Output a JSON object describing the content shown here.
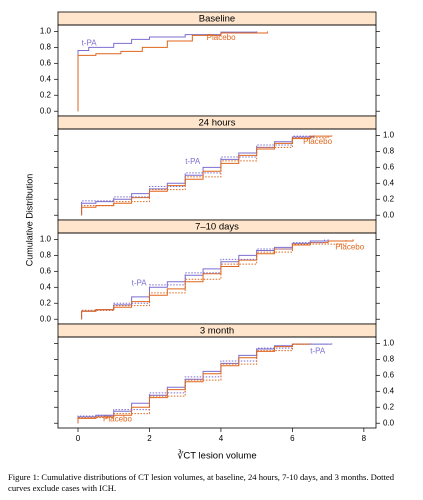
{
  "chart_data": [
    {
      "type": "line",
      "title": "Baseline",
      "xlim": [
        -0.56,
        8.34
      ],
      "ylim": [
        -0.06,
        1.08
      ],
      "yticks": [
        {
          "value": 0,
          "label": "0.0"
        },
        {
          "value": 0.2,
          "label": "0.2"
        },
        {
          "value": 0.4,
          "label": "0.4"
        },
        {
          "value": 0.6,
          "label": "0.6"
        },
        {
          "value": 0.8,
          "label": "0.8"
        },
        {
          "value": 1,
          "label": "1.0"
        }
      ],
      "series": [
        {
          "name": "t-PA",
          "color": "#7b6fd0",
          "x": [
            0,
            0,
            0.3,
            1,
            1.5,
            2,
            3,
            4,
            5
          ],
          "values": [
            0,
            0.76,
            0.8,
            0.85,
            0.9,
            0.93,
            0.96,
            0.99,
            1
          ]
        },
        {
          "name": "Placebo",
          "color": "#e0661c",
          "x": [
            0,
            0,
            0.5,
            1.2,
            1.8,
            2.5,
            3.2,
            4,
            5.3
          ],
          "values": [
            0,
            0.7,
            0.72,
            0.75,
            0.8,
            0.88,
            0.95,
            0.98,
            1
          ]
        }
      ]
    },
    {
      "type": "line",
      "title": "24 hours",
      "xlim": [
        -0.56,
        8.34
      ],
      "ylim": [
        -0.06,
        1.08
      ],
      "yticks": [
        {
          "value": 0,
          "label": "0.0"
        },
        {
          "value": 0.2,
          "label": "0.2"
        },
        {
          "value": 0.4,
          "label": "0.4"
        },
        {
          "value": 0.6,
          "label": "0.6"
        },
        {
          "value": 0.8,
          "label": "0.8"
        },
        {
          "value": 1,
          "label": "1.0"
        }
      ],
      "series": [
        {
          "name": "t-PA",
          "color": "#7b6fd0",
          "x": [
            0.1,
            0.1,
            0.5,
            1,
            1.5,
            2,
            2.5,
            3,
            3.5,
            4,
            4.5,
            5,
            5.5,
            6,
            6.6
          ],
          "values": [
            0,
            0.15,
            0.17,
            0.2,
            0.27,
            0.33,
            0.4,
            0.5,
            0.6,
            0.7,
            0.78,
            0.85,
            0.92,
            0.98,
            1
          ]
        },
        {
          "name": "Placebo",
          "color": "#e0661c",
          "x": [
            0.1,
            0.1,
            0.5,
            1,
            1.5,
            2,
            2.5,
            3,
            3.5,
            4,
            4.5,
            5,
            5.5,
            6,
            6.5,
            7.1
          ],
          "values": [
            0,
            0.1,
            0.12,
            0.15,
            0.22,
            0.3,
            0.37,
            0.45,
            0.55,
            0.65,
            0.75,
            0.83,
            0.9,
            0.96,
            0.99,
            1
          ]
        },
        {
          "color": "#7b6fd0",
          "dash": true,
          "x": [
            0.1,
            0.1,
            1,
            2,
            3,
            4,
            5,
            6,
            6.5
          ],
          "values": [
            0,
            0.18,
            0.23,
            0.36,
            0.53,
            0.73,
            0.88,
            0.99,
            1
          ]
        },
        {
          "color": "#e0661c",
          "dash": true,
          "x": [
            0.1,
            0.1,
            1,
            2,
            3,
            4,
            5,
            6,
            7
          ],
          "values": [
            0,
            0.12,
            0.17,
            0.32,
            0.48,
            0.68,
            0.85,
            0.97,
            1
          ]
        }
      ]
    },
    {
      "type": "line",
      "title": "7–10 days",
      "xlim": [
        -0.56,
        8.34
      ],
      "ylim": [
        -0.06,
        1.08
      ],
      "yticks": [
        {
          "value": 0,
          "label": "0.0"
        },
        {
          "value": 0.2,
          "label": "0.2"
        },
        {
          "value": 0.4,
          "label": "0.4"
        },
        {
          "value": 0.6,
          "label": "0.6"
        },
        {
          "value": 0.8,
          "label": "0.8"
        },
        {
          "value": 1,
          "label": "1.0"
        }
      ],
      "series": [
        {
          "name": "t-PA",
          "color": "#7b6fd0",
          "x": [
            0.1,
            0.1,
            0.5,
            1,
            1.5,
            2,
            2.5,
            3,
            3.5,
            4,
            4.5,
            5,
            5.5,
            6,
            6.5,
            7
          ],
          "values": [
            0,
            0.1,
            0.12,
            0.18,
            0.28,
            0.4,
            0.47,
            0.55,
            0.63,
            0.72,
            0.8,
            0.86,
            0.9,
            0.95,
            0.98,
            1
          ]
        },
        {
          "name": "Placebo",
          "color": "#e0661c",
          "x": [
            0.1,
            0.1,
            0.5,
            1,
            1.5,
            2,
            2.5,
            3,
            3.5,
            4,
            4.5,
            5,
            5.5,
            6,
            6.5,
            7,
            7.7
          ],
          "values": [
            0,
            0.1,
            0.12,
            0.15,
            0.22,
            0.3,
            0.38,
            0.47,
            0.57,
            0.66,
            0.74,
            0.82,
            0.88,
            0.93,
            0.96,
            0.98,
            1
          ]
        },
        {
          "color": "#7b6fd0",
          "dash": true,
          "x": [
            0.1,
            0.1,
            1,
            2,
            3,
            4,
            5,
            6,
            6.9
          ],
          "values": [
            0,
            0.11,
            0.2,
            0.43,
            0.58,
            0.75,
            0.88,
            0.96,
            1
          ]
        },
        {
          "color": "#e0661c",
          "dash": true,
          "x": [
            0.1,
            0.1,
            1,
            2,
            3,
            4,
            5,
            6,
            7.5
          ],
          "values": [
            0,
            0.11,
            0.17,
            0.33,
            0.5,
            0.69,
            0.84,
            0.94,
            1
          ]
        }
      ]
    },
    {
      "type": "line",
      "title": "3 month",
      "xlim": [
        -0.56,
        8.34
      ],
      "ylim": [
        -0.06,
        1.08
      ],
      "xlabel": "∛CT lesion volume",
      "xticks": [
        0,
        2,
        4,
        6,
        8
      ],
      "yticks": [
        {
          "value": 0,
          "label": "0.0"
        },
        {
          "value": 0.2,
          "label": "0.2"
        },
        {
          "value": 0.4,
          "label": "0.4"
        },
        {
          "value": 0.6,
          "label": "0.6"
        },
        {
          "value": 0.8,
          "label": "0.8"
        },
        {
          "value": 1,
          "label": "1.0"
        }
      ],
      "series": [
        {
          "name": "t-PA",
          "color": "#7b6fd0",
          "x": [
            0,
            0,
            0.5,
            1,
            1.5,
            2,
            2.5,
            3,
            3.5,
            4,
            4.5,
            5,
            5.5,
            6,
            7.1
          ],
          "values": [
            0,
            0.08,
            0.1,
            0.15,
            0.25,
            0.35,
            0.45,
            0.55,
            0.65,
            0.75,
            0.85,
            0.93,
            0.97,
            0.99,
            1
          ]
        },
        {
          "name": "Placebo",
          "color": "#e0661c",
          "x": [
            0,
            0,
            0.5,
            1,
            1.5,
            2,
            2.5,
            3,
            3.5,
            4,
            4.5,
            5,
            5.5,
            6,
            6.5
          ],
          "values": [
            0,
            0.06,
            0.08,
            0.1,
            0.2,
            0.32,
            0.42,
            0.52,
            0.62,
            0.72,
            0.82,
            0.9,
            0.96,
            0.99,
            1
          ]
        },
        {
          "color": "#7b6fd0",
          "dash": true,
          "x": [
            0,
            0,
            1,
            2,
            3,
            4,
            5,
            6,
            7
          ],
          "values": [
            0,
            0.09,
            0.17,
            0.38,
            0.58,
            0.78,
            0.94,
            0.99,
            1
          ]
        },
        {
          "color": "#e0661c",
          "dash": true,
          "x": [
            0,
            0,
            1,
            2,
            3,
            4,
            5,
            6,
            6.4
          ],
          "values": [
            0,
            0.07,
            0.12,
            0.34,
            0.54,
            0.74,
            0.91,
            0.99,
            1
          ]
        }
      ]
    }
  ],
  "ylabel": "Cumulative Distribution",
  "caption": "Figure 1: Cumulative distributions of CT lesion volumes, at baseline, 24 hours, 7-10 days, and 3 months. Dotted curves exclude cases with ICH."
}
